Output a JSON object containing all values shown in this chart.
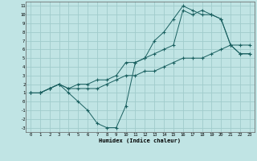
{
  "xlabel": "Humidex (Indice chaleur)",
  "bg_color": "#c0e4e4",
  "grid_color": "#a0cccc",
  "line_color": "#1a6060",
  "xlim": [
    -0.5,
    23.5
  ],
  "ylim": [
    -3.5,
    11.5
  ],
  "xticks": [
    0,
    1,
    2,
    3,
    4,
    5,
    6,
    7,
    8,
    9,
    10,
    11,
    12,
    13,
    14,
    15,
    16,
    17,
    18,
    19,
    20,
    21,
    22,
    23
  ],
  "yticks": [
    -3,
    -2,
    -1,
    0,
    1,
    2,
    3,
    4,
    5,
    6,
    7,
    8,
    9,
    10,
    11
  ],
  "line1_x": [
    0,
    1,
    2,
    3,
    4,
    5,
    6,
    7,
    8,
    9,
    10,
    11,
    12,
    13,
    14,
    15,
    16,
    17,
    18,
    19,
    20,
    21,
    22,
    23
  ],
  "line1_y": [
    1,
    1,
    1.5,
    2,
    1,
    0,
    -1,
    -2.5,
    -3,
    -3,
    -0.5,
    4.5,
    5,
    7,
    8,
    9.5,
    11,
    10.5,
    10,
    10,
    9.5,
    6.5,
    5.5,
    5.5
  ],
  "line2_x": [
    0,
    1,
    2,
    3,
    4,
    5,
    6,
    7,
    8,
    9,
    10,
    11,
    12,
    13,
    14,
    15,
    16,
    17,
    18,
    19,
    20,
    21,
    22,
    23
  ],
  "line2_y": [
    1,
    1,
    1.5,
    2,
    1.5,
    2,
    2,
    2.5,
    2.5,
    3,
    4.5,
    4.5,
    5,
    5.5,
    6,
    6.5,
    10.5,
    10,
    10.5,
    10,
    9.5,
    6.5,
    5.5,
    5.5
  ],
  "line3_x": [
    0,
    1,
    2,
    3,
    4,
    5,
    6,
    7,
    8,
    9,
    10,
    11,
    12,
    13,
    14,
    15,
    16,
    17,
    18,
    19,
    20,
    21,
    22,
    23
  ],
  "line3_y": [
    1,
    1,
    1.5,
    2,
    1.5,
    1.5,
    1.5,
    1.5,
    2,
    2.5,
    3,
    3,
    3.5,
    3.5,
    4,
    4.5,
    5,
    5,
    5,
    5.5,
    6,
    6.5,
    6.5,
    6.5
  ]
}
